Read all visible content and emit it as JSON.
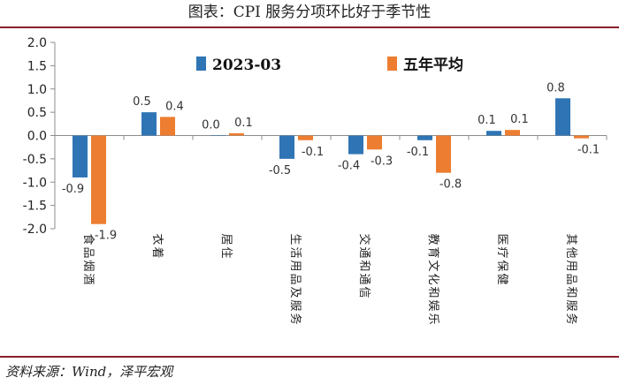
{
  "title": "图表：CPI 服务分项环比好于季节性",
  "source": "资料来源：Wind，泽平宏观",
  "colors": {
    "series1": "#2f75b5",
    "series2": "#ed7d31",
    "accent": "#8a1f2a"
  },
  "chart_data": {
    "type": "bar",
    "title": "图表：CPI 服务分项环比好于季节性",
    "categories": [
      "食品烟酒",
      "衣着",
      "居住",
      "生活用品及服务",
      "交通和通信",
      "教育文化和娱乐",
      "医疗保健",
      "其他用品和服务"
    ],
    "series": [
      {
        "name": "2023-03",
        "values": [
          -0.9,
          0.5,
          0.0,
          -0.5,
          -0.4,
          -0.1,
          0.1,
          0.8
        ],
        "labels": [
          "-0.9",
          "0.5",
          "0.0",
          "-0.5",
          "-0.4",
          "-0.1",
          "0.1",
          "0.8"
        ]
      },
      {
        "name": "五年平均",
        "values": [
          -1.9,
          0.4,
          0.05,
          -0.1,
          -0.3,
          -0.8,
          0.12,
          -0.06
        ],
        "labels": [
          "-1.9",
          "0.4",
          "0.1",
          "-0.1",
          "-0.3",
          "-0.8",
          "0.1",
          "-0.1"
        ]
      }
    ],
    "ylim": [
      -2.0,
      2.0
    ],
    "yticks": [
      "2.0",
      "1.5",
      "1.0",
      "0.5",
      "0.0",
      "-0.5",
      "-1.0",
      "-1.5",
      "-2.0"
    ],
    "legend": "top",
    "xlabel": "",
    "ylabel": ""
  }
}
